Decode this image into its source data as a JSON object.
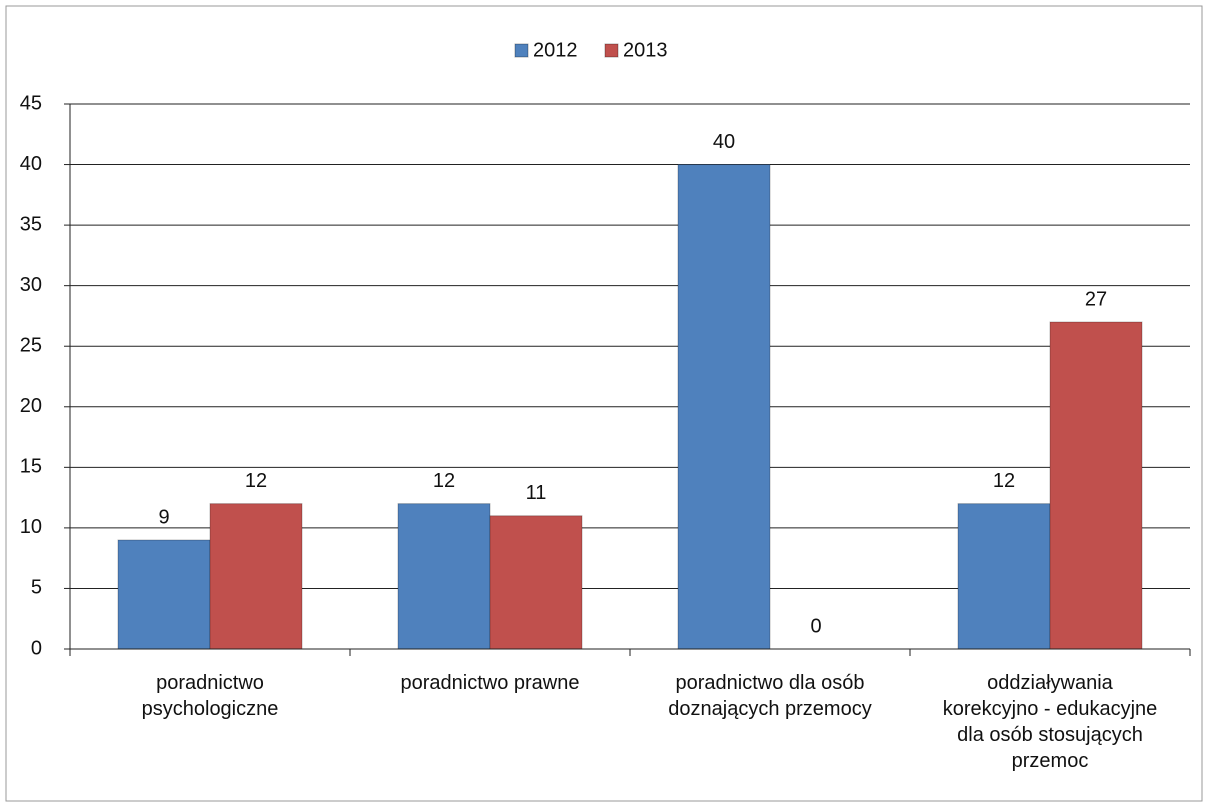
{
  "chart_data": {
    "type": "bar",
    "categories": [
      "poradnictwo\npsychologiczne",
      "poradnictwo prawne",
      "poradnictwo dla osób\ndoznających przemocy",
      "oddziaływania\nkorekcyjno - edukacyjne\ndla osób stosujących\nprzemoc"
    ],
    "series": [
      {
        "name": "2012",
        "color": "#4f81bd",
        "values": [
          9,
          12,
          40,
          12
        ]
      },
      {
        "name": "2013",
        "color": "#c0504d",
        "values": [
          12,
          11,
          0,
          27
        ]
      }
    ],
    "ylim": [
      0,
      45
    ],
    "yticks": [
      0,
      5,
      10,
      15,
      20,
      25,
      30,
      35,
      40,
      45
    ],
    "grid": true,
    "legend": "top"
  }
}
